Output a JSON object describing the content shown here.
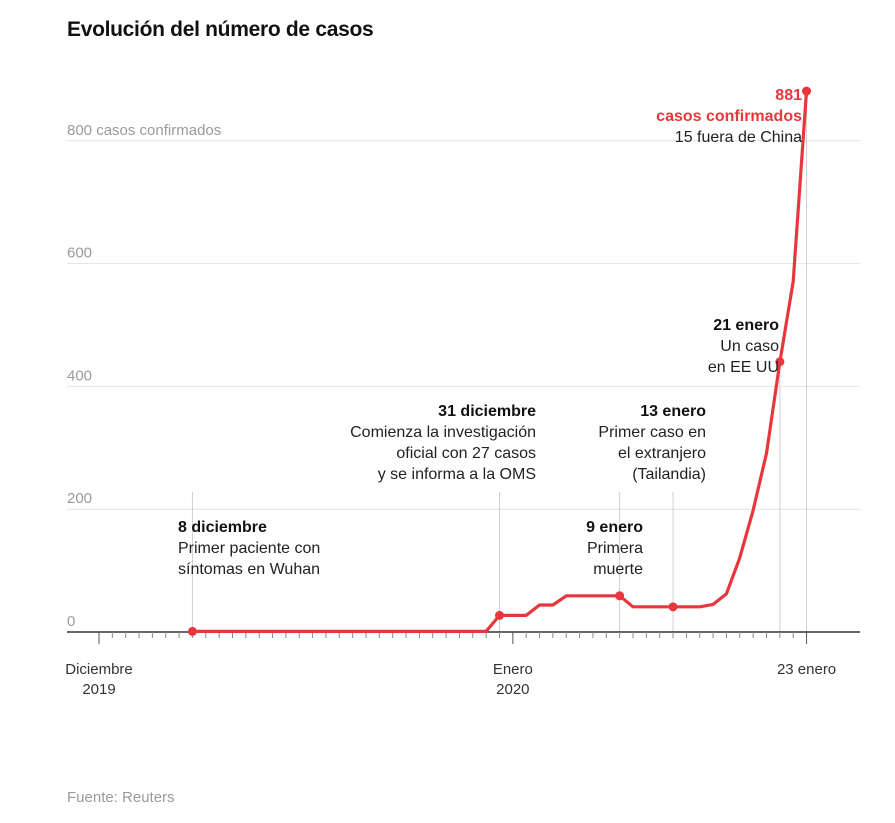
{
  "title": "Evolución del número de casos",
  "source": "Fuente: Reuters",
  "accent_color": "#e8373c",
  "chart_data": {
    "type": "line",
    "title": "Evolución del número de casos",
    "ylim": [
      0,
      900
    ],
    "y_ticks": [
      {
        "value": 0,
        "label": "0"
      },
      {
        "value": 200,
        "label": "200"
      },
      {
        "value": 400,
        "label": "400"
      },
      {
        "value": 600,
        "label": "600"
      },
      {
        "value": 800,
        "label": "800 casos confirmados"
      }
    ],
    "x_labels": [
      {
        "date": "2019-12-01",
        "lines": [
          "Diciembre",
          "2019"
        ]
      },
      {
        "date": "2020-01-01",
        "lines": [
          "Enero",
          "2020"
        ]
      },
      {
        "date": "2020-01-23",
        "lines": [
          "23 enero"
        ]
      }
    ],
    "grid": true,
    "series": [
      {
        "x": [
          "2019-12-08",
          "2019-12-30",
          "2019-12-31",
          "2020-01-02",
          "2020-01-03",
          "2020-01-04",
          "2020-01-05",
          "2020-01-09",
          "2020-01-10",
          "2020-01-13",
          "2020-01-15",
          "2020-01-16",
          "2020-01-17",
          "2020-01-18",
          "2020-01-19",
          "2020-01-20",
          "2020-01-21",
          "2020-01-22",
          "2020-01-23"
        ],
        "y": [
          1,
          1,
          27,
          27,
          44,
          44,
          59,
          59,
          41,
          41,
          41,
          45,
          62,
          121,
          198,
          291,
          440,
          571,
          881
        ]
      }
    ],
    "annotations": [
      {
        "date": "2019-12-08",
        "value": 1,
        "bold": "8 diciembre",
        "lines": [
          "Primer paciente con",
          "síntomas en Wuhan"
        ],
        "align": "left",
        "red": false
      },
      {
        "date": "2019-12-31",
        "value": 27,
        "bold": "31 diciembre",
        "lines": [
          "Comienza la investigación",
          "oficial con 27 casos",
          "y se informa a la OMS"
        ],
        "align": "right",
        "red": false
      },
      {
        "date": "2020-01-09",
        "value": 59,
        "bold": "9 enero",
        "lines": [
          "Primera",
          "muerte"
        ],
        "align": "right",
        "red": false
      },
      {
        "date": "2020-01-13",
        "value": 41,
        "bold": "13 enero",
        "lines": [
          "Primer caso en",
          "el extranjero",
          "(Tailandia)"
        ],
        "align": "right",
        "red": false
      },
      {
        "date": "2020-01-21",
        "value": 440,
        "bold": "21 enero",
        "lines": [
          "Un caso",
          "en EE UU"
        ],
        "align": "right",
        "red": false
      },
      {
        "date": "2020-01-23",
        "value": 881,
        "bold": "881",
        "lines": [
          "casos confirmados",
          "15 fuera de China"
        ],
        "align": "right",
        "red": true
      }
    ]
  }
}
